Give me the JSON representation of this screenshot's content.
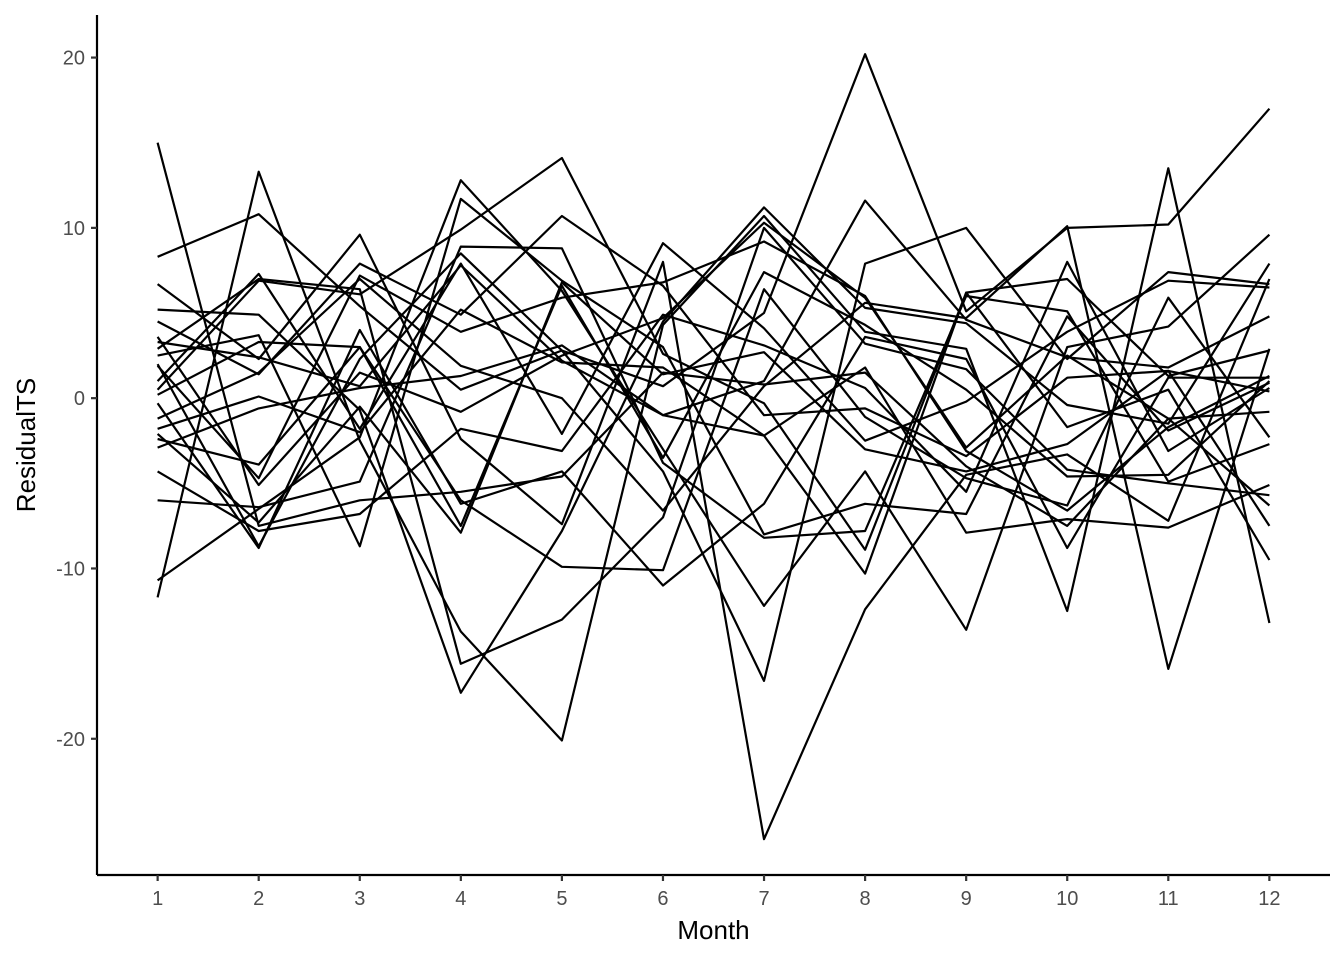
{
  "chart_data": {
    "type": "line",
    "xlabel": "Month",
    "ylabel": "ResidualTS",
    "x": [
      1,
      2,
      3,
      4,
      5,
      6,
      7,
      8,
      9,
      10,
      11,
      12
    ],
    "xticks": [
      1,
      2,
      3,
      4,
      5,
      6,
      7,
      8,
      9,
      10,
      11,
      12
    ],
    "yticks": [
      -20,
      -10,
      0,
      10,
      20
    ],
    "ylim": [
      -28,
      22.5
    ],
    "xlim": [
      0.4,
      12.6
    ],
    "grid": false,
    "legend": "none",
    "line_color": "#000000",
    "series": [
      {
        "values": [
          15.0,
          -7.5,
          -6.0,
          -5.5,
          -4.6,
          1.5,
          0.8,
          1.5,
          -4.0,
          -7.5,
          -1.2,
          -0.8
        ]
      },
      {
        "values": [
          8.3,
          10.8,
          5.4,
          0.5,
          2.8,
          0.7,
          5.0,
          20.2,
          5.1,
          10.0,
          10.2,
          17.0
        ]
      },
      {
        "values": [
          -10.7,
          -6.5,
          -2.3,
          12.8,
          6.3,
          -3.0,
          -12.2,
          -4.3,
          -13.6,
          3.0,
          4.2,
          9.6
        ]
      },
      {
        "values": [
          -11.7,
          13.3,
          -2.5,
          -13.7,
          -20.1,
          4.3,
          10.7,
          3.9,
          2.9,
          -12.5,
          13.5,
          -13.2
        ]
      },
      {
        "values": [
          6.7,
          2.3,
          9.6,
          -2.4,
          -7.4,
          8.0,
          -25.9,
          -12.4,
          -4.5,
          -3.3,
          -7.2,
          7.0
        ]
      },
      {
        "values": [
          5.2,
          4.9,
          -0.7,
          -17.3,
          -7.8,
          4.5,
          11.2,
          5.3,
          4.4,
          -0.4,
          -1.5,
          7.9
        ]
      },
      {
        "values": [
          2.9,
          7.0,
          6.4,
          -15.6,
          -13.0,
          -7.0,
          10.0,
          3.2,
          1.7,
          -4.2,
          -5.0,
          -5.7
        ]
      },
      {
        "values": [
          3.3,
          2.4,
          0.7,
          7.8,
          2.2,
          -1.0,
          1.0,
          11.6,
          4.6,
          2.4,
          1.8,
          4.8
        ]
      },
      {
        "values": [
          -2.9,
          -0.6,
          0.6,
          1.3,
          3.1,
          -1.0,
          -2.2,
          -10.3,
          6.2,
          7.0,
          1.3,
          2.8
        ]
      },
      {
        "values": [
          1.0,
          7.3,
          -1.8,
          7.9,
          -2.1,
          9.1,
          4.1,
          -2.5,
          -0.2,
          3.9,
          6.9,
          6.5
        ]
      },
      {
        "values": [
          -0.3,
          -8.8,
          4.0,
          -6.2,
          -4.3,
          -11.0,
          -6.2,
          3.6,
          2.3,
          -8.8,
          1.2,
          1.2
        ]
      },
      {
        "values": [
          2.5,
          3.7,
          -8.7,
          11.7,
          6.9,
          3.0,
          -8.0,
          -6.2,
          -6.8,
          4.8,
          -1.9,
          0.9
        ]
      },
      {
        "values": [
          4.5,
          1.4,
          7.9,
          4.9,
          10.7,
          6.6,
          -1.0,
          -0.6,
          -3.4,
          1.2,
          1.6,
          0.4
        ]
      },
      {
        "values": [
          2.0,
          -8.7,
          2.3,
          8.5,
          2.8,
          -4.3,
          -16.6,
          7.9,
          10.0,
          2.3,
          7.4,
          6.7
        ]
      },
      {
        "values": [
          -2.4,
          -3.9,
          3.0,
          -6.0,
          -9.9,
          -10.1,
          6.4,
          -1.1,
          -4.7,
          -6.3,
          5.9,
          -2.3
        ]
      },
      {
        "values": [
          -6.0,
          -6.4,
          -4.9,
          8.9,
          8.8,
          -3.8,
          -8.2,
          -7.8,
          6.0,
          5.1,
          -4.9,
          -2.7
        ]
      },
      {
        "values": [
          -4.3,
          -7.8,
          -6.8,
          -1.8,
          -3.1,
          4.9,
          3.1,
          0.6,
          -5.5,
          8.0,
          -3.1,
          0.6
        ]
      },
      {
        "values": [
          0.5,
          6.9,
          6.1,
          9.9,
          14.1,
          2.6,
          -0.3,
          -8.9,
          6.2,
          -1.7,
          0.5,
          -9.5
        ]
      },
      {
        "values": [
          -1.2,
          1.5,
          7.0,
          1.9,
          0.0,
          -6.6,
          0.7,
          5.6,
          4.7,
          10.1,
          -15.9,
          2.9
        ]
      },
      {
        "values": [
          3.6,
          -5.1,
          1.5,
          -0.8,
          2.5,
          4.7,
          10.3,
          5.9,
          -2.9,
          2.5,
          -1.2,
          -6.3
        ]
      },
      {
        "values": [
          1.9,
          -4.7,
          7.2,
          3.9,
          5.9,
          6.8,
          9.2,
          6.0,
          -3.1,
          -6.6,
          -1.7,
          1.3
        ]
      },
      {
        "values": [
          -1.8,
          0.1,
          -2.0,
          5.2,
          2.1,
          1.8,
          -2.2,
          1.8,
          -7.9,
          -7.1,
          -7.6,
          -5.1
        ]
      },
      {
        "values": [
          0.2,
          3.3,
          3.0,
          -7.5,
          6.6,
          -3.5,
          7.4,
          4.3,
          0.5,
          -4.6,
          -4.5,
          1.0
        ]
      },
      {
        "values": [
          -2.1,
          -7.3,
          -0.5,
          -7.9,
          6.8,
          1.4,
          2.7,
          -3.0,
          -4.3,
          -2.7,
          1.6,
          -7.5
        ]
      }
    ]
  }
}
